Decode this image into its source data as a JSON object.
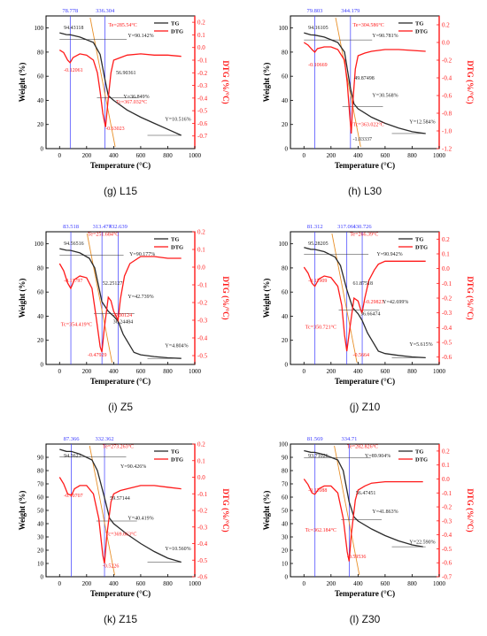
{
  "figure": {
    "common": {
      "xlabel": "Temperature (°C)",
      "ylabel_left": "Weight (%)",
      "ylabel_right": "DTG (%/°C)",
      "x_ticks": [
        "0",
        "200",
        "400",
        "600",
        "800",
        "1000"
      ],
      "legend": [
        "TG",
        "DTG"
      ],
      "colors": {
        "tg": "#2b2b2b",
        "dtg": "#ff1a1a",
        "tangent": "#e8902a",
        "marker": "#3a3aff"
      }
    }
  },
  "chart_data": [
    {
      "type": "line",
      "caption": "(g) L15",
      "xlim": [
        -100,
        1000
      ],
      "ylim_left": [
        0,
        110
      ],
      "ylim_right": [
        -0.8,
        0.25
      ],
      "y_ticks_left": [
        "0",
        "20",
        "40",
        "60",
        "80",
        "100"
      ],
      "y_ticks_right": [
        "0.2",
        "0.1",
        "0.0",
        "-0.1",
        "-0.2",
        "-0.3",
        "-0.4",
        "-0.5",
        "-0.6",
        "-0.7"
      ],
      "top_markers": [
        "78.778",
        "336.304"
      ],
      "marker_x": [
        78.778,
        336.304
      ],
      "labels": [
        "94.43118",
        "Te=285.54°C",
        "Y=90.142%",
        "-0.12061",
        "56.90361",
        "Tc=367.032°C",
        "Y=36.849%",
        "-0.63023",
        "Y=10.516%"
      ],
      "series": [
        {
          "name": "TG",
          "axis": "left",
          "x": [
            0,
            50,
            78,
            150,
            250,
            300,
            336,
            360,
            400,
            500,
            600,
            700,
            800,
            900
          ],
          "y": [
            96,
            94.5,
            94.4,
            92.5,
            88,
            78,
            57,
            44,
            40,
            32,
            26,
            21,
            16,
            11
          ]
        },
        {
          "name": "DTG",
          "axis": "right",
          "x": [
            0,
            30,
            60,
            78,
            100,
            150,
            200,
            250,
            280,
            300,
            320,
            340,
            360,
            380,
            400,
            450,
            500,
            600,
            700,
            800,
            900
          ],
          "y": [
            -0.02,
            -0.04,
            -0.1,
            -0.12,
            -0.08,
            -0.05,
            -0.06,
            -0.1,
            -0.2,
            -0.35,
            -0.52,
            -0.63,
            -0.4,
            -0.2,
            -0.1,
            -0.08,
            -0.06,
            -0.05,
            -0.06,
            -0.06,
            -0.07
          ]
        }
      ]
    },
    {
      "type": "line",
      "caption": "(h) L30",
      "xlim": [
        -100,
        1000
      ],
      "ylim_left": [
        0,
        110
      ],
      "ylim_right": [
        -1.2,
        0.3
      ],
      "y_ticks_left": [
        "0",
        "20",
        "40",
        "60",
        "80",
        "100"
      ],
      "y_ticks_right": [
        "0.2",
        "0.0",
        "-0.2",
        "-0.4",
        "-0.6",
        "-0.8",
        "-1.0",
        "-1.2"
      ],
      "top_markers": [
        "79.803",
        "344.179"
      ],
      "marker_x": [
        79.803,
        344.179
      ],
      "labels": [
        "94.16105",
        "Te=304.586°C",
        "Y=90.781%",
        "-0.10669",
        "49.87498",
        "Y=30.568%",
        "Tc=363.022°C",
        "-1.03337",
        "Y=12.584%"
      ],
      "series": [
        {
          "name": "TG",
          "axis": "left",
          "x": [
            0,
            50,
            80,
            150,
            250,
            300,
            344,
            370,
            400,
            500,
            600,
            700,
            800,
            900
          ],
          "y": [
            96,
            94.3,
            94.1,
            92.5,
            88,
            80,
            50,
            37,
            33,
            26,
            21,
            17,
            14,
            12.5
          ]
        },
        {
          "name": "DTG",
          "axis": "right",
          "x": [
            0,
            30,
            60,
            80,
            100,
            150,
            200,
            250,
            300,
            320,
            340,
            350,
            360,
            380,
            400,
            450,
            500,
            600,
            700,
            800,
            900
          ],
          "y": [
            0.0,
            -0.03,
            -0.08,
            -0.11,
            -0.07,
            -0.05,
            -0.05,
            -0.08,
            -0.2,
            -0.45,
            -0.85,
            -1.03,
            -0.7,
            -0.3,
            -0.15,
            -0.12,
            -0.1,
            -0.08,
            -0.08,
            -0.09,
            -0.1
          ]
        }
      ]
    },
    {
      "type": "line",
      "caption": "(i) Z5",
      "xlim": [
        -100,
        1000
      ],
      "ylim_left": [
        0,
        110
      ],
      "ylim_right": [
        -0.55,
        0.2
      ],
      "y_ticks_left": [
        "0",
        "20",
        "40",
        "60",
        "80",
        "100"
      ],
      "y_ticks_right": [
        "0.2",
        "0.1",
        "0.0",
        "-0.1",
        "-0.2",
        "-0.3",
        "-0.4",
        "-0.5"
      ],
      "top_markers": [
        "83.518",
        "313.477",
        "432.639"
      ],
      "marker_x": [
        83.518,
        313.477,
        432.639
      ],
      "labels": [
        "94.56516",
        "Te=251.684°C",
        "Y=90.177%",
        "-0.11797",
        "52.25127",
        "Y=42.739%",
        "-0.30124",
        "36.24484",
        "Tc=354.419°C",
        "-0.47929",
        "Y=4.804%"
      ],
      "series": [
        {
          "name": "TG",
          "axis": "left",
          "x": [
            0,
            50,
            83,
            150,
            220,
            260,
            313,
            360,
            400,
            432,
            470,
            550,
            600,
            700,
            800,
            900
          ],
          "y": [
            96,
            94.7,
            94.5,
            92.5,
            88,
            80,
            52,
            44,
            40,
            36,
            25,
            10,
            8,
            6.5,
            5.5,
            5
          ]
        },
        {
          "name": "DTG",
          "axis": "right",
          "x": [
            0,
            30,
            60,
            83,
            110,
            150,
            200,
            240,
            270,
            300,
            313,
            330,
            360,
            380,
            400,
            420,
            432,
            450,
            480,
            520,
            600,
            700,
            800,
            900
          ],
          "y": [
            0.02,
            -0.02,
            -0.09,
            -0.12,
            -0.07,
            -0.05,
            -0.06,
            -0.12,
            -0.28,
            -0.45,
            -0.48,
            -0.35,
            -0.17,
            -0.19,
            -0.25,
            -0.28,
            -0.3,
            -0.18,
            -0.05,
            0.02,
            0.06,
            0.06,
            0.05,
            0.05
          ]
        }
      ]
    },
    {
      "type": "line",
      "caption": "(j) Z10",
      "xlim": [
        -100,
        1000
      ],
      "ylim_left": [
        0,
        110
      ],
      "ylim_right": [
        -0.65,
        0.25
      ],
      "y_ticks_left": [
        "0",
        "20",
        "40",
        "60",
        "80",
        "100"
      ],
      "y_ticks_right": [
        "0.2",
        "0.1",
        "0.0",
        "-0.1",
        "-0.2",
        "-0.3",
        "-0.4",
        "-0.5",
        "-0.6"
      ],
      "top_markers": [
        "81.312",
        "317.061",
        "430.726"
      ],
      "marker_x": [
        81.312,
        317.061,
        430.726
      ],
      "labels": [
        "95.28205",
        "Te=266.39°C",
        "Y=90.942%",
        "-0.11909",
        "61.87518",
        "-0.29823",
        "Y=42.699%",
        "Tc=350.721°C",
        "36.66474",
        "-0.5664",
        "Y=5.615%"
      ],
      "series": [
        {
          "name": "TG",
          "axis": "left",
          "x": [
            0,
            50,
            81,
            150,
            230,
            270,
            317,
            360,
            400,
            430,
            470,
            550,
            600,
            700,
            800,
            900
          ],
          "y": [
            97,
            95.5,
            95.3,
            93.5,
            89,
            82,
            62,
            47,
            42,
            36.7,
            26,
            11,
            9,
            7.5,
            6.2,
            5.6
          ]
        },
        {
          "name": "DTG",
          "axis": "right",
          "x": [
            0,
            30,
            60,
            81,
            110,
            150,
            200,
            250,
            280,
            300,
            317,
            340,
            370,
            400,
            420,
            430,
            450,
            480,
            520,
            550,
            600,
            700,
            800,
            900
          ],
          "y": [
            0.01,
            -0.03,
            -0.1,
            -0.12,
            -0.07,
            -0.05,
            -0.06,
            -0.12,
            -0.25,
            -0.45,
            -0.56,
            -0.4,
            -0.2,
            -0.22,
            -0.28,
            -0.3,
            -0.2,
            -0.08,
            -0.01,
            0.03,
            0.05,
            0.05,
            0.05,
            0.05
          ]
        }
      ]
    },
    {
      "type": "line",
      "caption": "(k) Z15",
      "xlim": [
        -100,
        1000
      ],
      "ylim_left": [
        0,
        100
      ],
      "ylim_right": [
        -0.6,
        0.2
      ],
      "y_ticks_left": [
        "0",
        "10",
        "20",
        "30",
        "40",
        "50",
        "60",
        "70",
        "80",
        "90"
      ],
      "y_ticks_right": [
        "0.2",
        "0.1",
        "0.0",
        "-0.1",
        "-0.2",
        "-0.3",
        "-0.4",
        "-0.5",
        "-0.6"
      ],
      "top_markers": [
        "87.366",
        "332.362"
      ],
      "marker_x": [
        87.366,
        332.362
      ],
      "labels": [
        "94.3623",
        "Te=273.263°C",
        "Y=90.426%",
        "-0.10707",
        "59.57144",
        "Y=40.419%",
        "Tc=369.663°C",
        "-0.5226",
        "Y=10.560%"
      ],
      "series": [
        {
          "name": "TG",
          "axis": "left",
          "x": [
            0,
            50,
            87,
            150,
            240,
            280,
            332,
            370,
            400,
            500,
            600,
            700,
            800,
            900
          ],
          "y": [
            96,
            94.5,
            94.4,
            92.5,
            88,
            80,
            59.6,
            44,
            40,
            32,
            25,
            19,
            14,
            11
          ]
        },
        {
          "name": "DTG",
          "axis": "right",
          "x": [
            0,
            30,
            60,
            87,
            110,
            150,
            200,
            250,
            290,
            320,
            332,
            350,
            380,
            400,
            450,
            500,
            600,
            700,
            800,
            900
          ],
          "y": [
            0.0,
            -0.04,
            -0.1,
            -0.11,
            -0.07,
            -0.05,
            -0.05,
            -0.1,
            -0.25,
            -0.47,
            -0.52,
            -0.35,
            -0.15,
            -0.1,
            -0.08,
            -0.07,
            -0.05,
            -0.05,
            -0.06,
            -0.07
          ]
        }
      ]
    },
    {
      "type": "line",
      "caption": "(l) Z30",
      "xlim": [
        -100,
        1000
      ],
      "ylim_left": [
        0,
        100
      ],
      "ylim_right": [
        -0.7,
        0.25
      ],
      "y_ticks_left": [
        "0",
        "10",
        "20",
        "30",
        "40",
        "50",
        "60",
        "70",
        "80",
        "90",
        "100"
      ],
      "y_ticks_right": [
        "0.2",
        "0.1",
        "0.0",
        "-0.1",
        "-0.2",
        "-0.3",
        "-0.4",
        "-0.5",
        "-0.6",
        "-0.7"
      ],
      "top_markers": [
        "81.569",
        "334.71"
      ],
      "marker_x": [
        81.569,
        334.71
      ],
      "labels": [
        "93.71026",
        "Te=282.826°C",
        "Y=89.904%",
        "-0.11088",
        "56.47451",
        "Y=41.863%",
        "Tc=362.184°C",
        "-0.59536",
        "Y=22.590%"
      ],
      "series": [
        {
          "name": "TG",
          "axis": "left",
          "x": [
            0,
            50,
            81,
            150,
            250,
            290,
            334,
            370,
            400,
            500,
            600,
            700,
            800,
            880
          ],
          "y": [
            95,
            93.8,
            93.7,
            92,
            88,
            80,
            56.5,
            45,
            42,
            36,
            31,
            27,
            24,
            22.6
          ]
        },
        {
          "name": "DTG",
          "axis": "right",
          "x": [
            0,
            30,
            60,
            81,
            110,
            150,
            200,
            250,
            290,
            320,
            334,
            350,
            380,
            400,
            450,
            500,
            600,
            700,
            800,
            880
          ],
          "y": [
            0.0,
            -0.04,
            -0.1,
            -0.11,
            -0.07,
            -0.05,
            -0.05,
            -0.1,
            -0.28,
            -0.52,
            -0.59,
            -0.4,
            -0.15,
            -0.08,
            -0.05,
            -0.03,
            -0.02,
            -0.02,
            -0.02,
            -0.02
          ]
        }
      ]
    }
  ]
}
